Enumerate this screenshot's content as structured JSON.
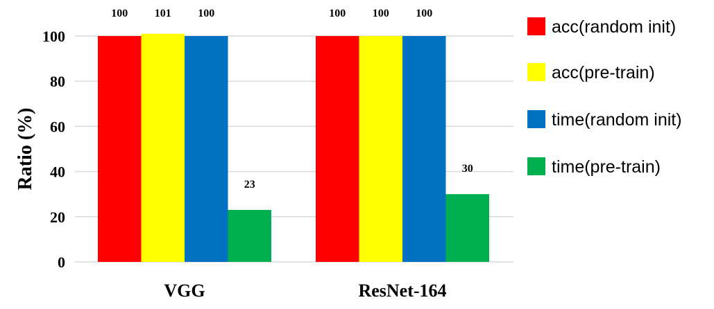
{
  "chart_data": {
    "type": "bar",
    "title": "",
    "xlabel": "",
    "ylabel": "Ratio (%)",
    "ylim": [
      0,
      100
    ],
    "yticks": [
      "0",
      "20",
      "40",
      "60",
      "80",
      "100"
    ],
    "grid": true,
    "legend_position": "right",
    "categories": [
      "VGG",
      "ResNet-164"
    ],
    "series": [
      {
        "name": "acc(random init)",
        "color": "#ff0000",
        "values": [
          100,
          100
        ],
        "labels": [
          "100",
          "100"
        ]
      },
      {
        "name": "acc(pre-train)",
        "color": "#ffff00",
        "values": [
          101,
          100
        ],
        "labels": [
          "101",
          "100"
        ]
      },
      {
        "name": "time(random init)",
        "color": "#0070c0",
        "values": [
          100,
          100
        ],
        "labels": [
          "100",
          "100"
        ]
      },
      {
        "name": "time(pre-train)",
        "color": "#00b050",
        "values": [
          23,
          30
        ],
        "labels": [
          "23",
          "30"
        ]
      }
    ]
  }
}
